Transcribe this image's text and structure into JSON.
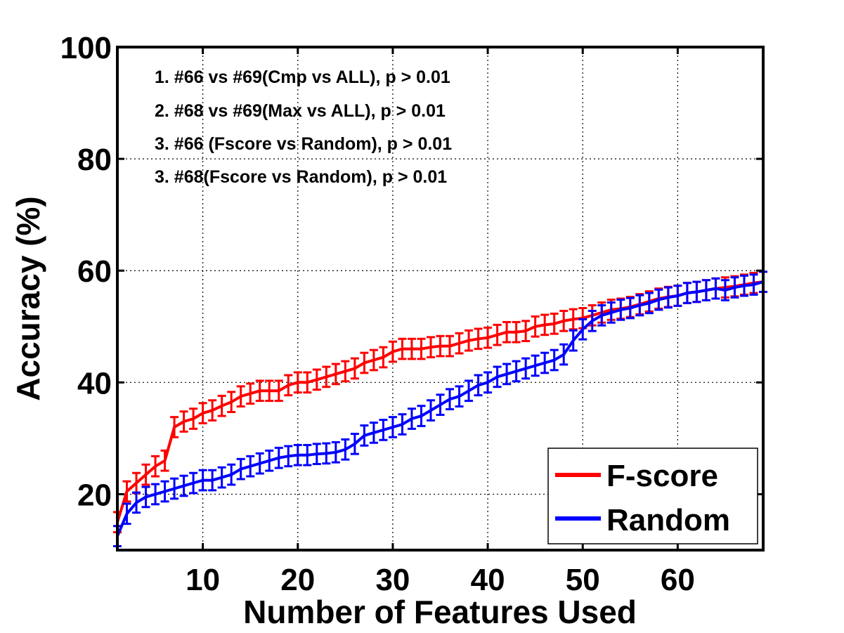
{
  "chart_data": {
    "type": "line",
    "xlabel": "Number of Features Used",
    "ylabel": "Accuracy (%)",
    "xlim": [
      1,
      69
    ],
    "ylim": [
      10,
      100
    ],
    "xticks": [
      10,
      20,
      30,
      40,
      50,
      60
    ],
    "yticks": [
      20,
      40,
      60,
      80,
      100
    ],
    "grid": true,
    "legend_position": "bottom-right",
    "annotations": [
      "1. #66 vs #69(Cmp vs ALL), p > 0.01",
      "2. #68 vs #69(Max vs ALL), p > 0.01",
      "3. #66 (Fscore vs Random), p > 0.01",
      "3. #68(Fscore vs Random), p > 0.01"
    ],
    "series": [
      {
        "name": "F-score",
        "color": "#ff0000",
        "error": 1.8,
        "x": [
          1,
          2,
          3,
          4,
          5,
          6,
          7,
          8,
          9,
          10,
          11,
          12,
          13,
          14,
          15,
          16,
          17,
          18,
          19,
          20,
          21,
          22,
          23,
          24,
          25,
          26,
          27,
          28,
          29,
          30,
          31,
          32,
          33,
          34,
          35,
          36,
          37,
          38,
          39,
          40,
          41,
          42,
          43,
          44,
          45,
          46,
          47,
          48,
          49,
          50,
          51,
          52,
          53,
          54,
          55,
          56,
          57,
          58,
          59,
          60,
          61,
          62,
          63,
          64,
          65,
          66,
          67,
          68,
          69
        ],
        "values": [
          15,
          20.5,
          22,
          23.5,
          25,
          26,
          32,
          33,
          33.5,
          34.5,
          35,
          35.8,
          36.5,
          37.5,
          38,
          38.5,
          38.5,
          38.5,
          39.5,
          40,
          40,
          40.5,
          41,
          41.5,
          42,
          42.5,
          43.5,
          44,
          44.5,
          45.5,
          46,
          46,
          46,
          46.3,
          46.5,
          46.5,
          47,
          47.5,
          47.8,
          48,
          48.5,
          49,
          49,
          49.2,
          50,
          50.3,
          50.5,
          51,
          51.3,
          51.5,
          52,
          52.5,
          53,
          53.2,
          53.5,
          54,
          54.5,
          55,
          55.3,
          55.5,
          56,
          56.2,
          56.5,
          56.8,
          57,
          57.2,
          57.5,
          57.8,
          58
        ]
      },
      {
        "name": "Random",
        "color": "#0000ff",
        "error": 1.8,
        "x": [
          1,
          2,
          3,
          4,
          5,
          6,
          7,
          8,
          9,
          10,
          11,
          12,
          13,
          14,
          15,
          16,
          17,
          18,
          19,
          20,
          21,
          22,
          23,
          24,
          25,
          26,
          27,
          28,
          29,
          30,
          31,
          32,
          33,
          34,
          35,
          36,
          37,
          38,
          39,
          40,
          41,
          42,
          43,
          44,
          45,
          46,
          47,
          48,
          49,
          50,
          51,
          52,
          53,
          54,
          55,
          56,
          57,
          58,
          59,
          60,
          61,
          62,
          63,
          64,
          65,
          66,
          67,
          68,
          69
        ],
        "values": [
          12.5,
          16.5,
          18.5,
          19.5,
          20,
          20.5,
          21,
          21.5,
          22,
          22.5,
          22.5,
          23,
          23.5,
          24.5,
          25,
          25.5,
          26,
          26.5,
          26.8,
          27,
          27,
          27.2,
          27.3,
          27.5,
          28,
          29,
          30.5,
          31,
          31.5,
          32,
          32.5,
          33.5,
          34,
          35,
          36,
          37,
          37.5,
          38.5,
          39.5,
          40,
          41,
          41.5,
          42,
          42.5,
          43,
          43.5,
          44,
          45,
          47.5,
          49.5,
          51,
          52,
          52.5,
          53,
          53.3,
          53.8,
          54.2,
          54.8,
          55.2,
          55.5,
          56,
          56.2,
          56.5,
          56.8,
          56.5,
          57,
          57.3,
          57.5,
          58
        ]
      }
    ]
  }
}
